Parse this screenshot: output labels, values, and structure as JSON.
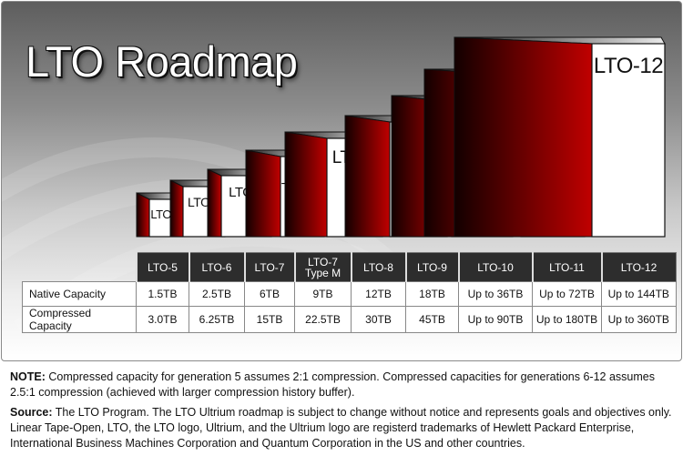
{
  "title": "LTO Roadmap",
  "chart_data": {
    "type": "table",
    "generations": [
      "LTO-5",
      "LTO-6",
      "LTO-7",
      "LTO-7\nType M",
      "LTO-8",
      "LTO-9",
      "LTO-10",
      "LTO-11",
      "LTO-12"
    ],
    "rows": [
      {
        "label": "Native Capacity",
        "values": [
          "1.5TB",
          "2.5TB",
          "6TB",
          "9TB",
          "12TB",
          "18TB",
          "Up to 36TB",
          "Up to 72TB",
          "Up to 144TB"
        ]
      },
      {
        "label": "Compressed Capacity",
        "values": [
          "3.0TB",
          "6.25TB",
          "15TB",
          "22.5TB",
          "30TB",
          "45TB",
          "Up to 90TB",
          "Up to 180TB",
          "Up to 360TB"
        ]
      }
    ]
  },
  "colors": {
    "accent_red": "#b80000",
    "header_dark": "#2d2d2d"
  },
  "notes": {
    "note_label": "NOTE:",
    "note_text": " Compressed capacity for generation 5 assumes 2:1 compression. Compressed capacities for generations 6-12 assumes 2.5:1 compression (achieved with larger compression history buffer).",
    "source_label": "Source:",
    "source_text": " The LTO Program. The LTO Ultrium roadmap is subject to change without notice and represents goals and objectives only. Linear Tape-Open, LTO, the LTO logo, Ultrium, and the Ultrium logo are registerd trademarks of Hewlett Packard Enterprise, International Business Machines Corporation and Quantum Corporation in the US and other countries."
  }
}
